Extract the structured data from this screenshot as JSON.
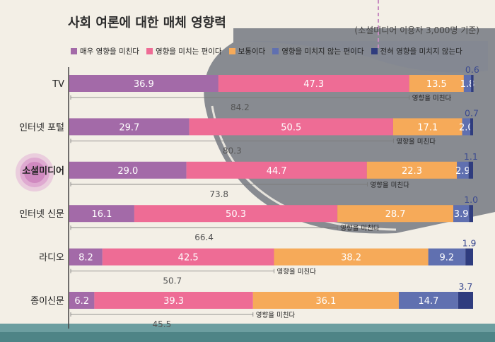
{
  "chart_data": {
    "type": "bar",
    "orientation": "horizontal-stacked-100",
    "title": "사회 여론에 대한 매체 영향력",
    "subtitle": "(소셜미디어 이용자 3,000명 기준)",
    "categories": [
      "TV",
      "인터넷 포털",
      "소셜미디어",
      "인터넷 신문",
      "라디오",
      "종이신문"
    ],
    "highlight_category": "소셜미디어",
    "series": [
      {
        "name": "매우 영향을 미친다",
        "color": "#a36aa8",
        "values": [
          36.9,
          29.7,
          29.0,
          16.1,
          8.2,
          6.2
        ]
      },
      {
        "name": "영향을 미치는 편이다",
        "color": "#ee6c95",
        "values": [
          47.3,
          50.5,
          44.7,
          50.3,
          42.5,
          39.3
        ]
      },
      {
        "name": "보통이다",
        "color": "#f6aa59",
        "values": [
          13.5,
          17.1,
          22.3,
          28.7,
          38.2,
          36.1
        ]
      },
      {
        "name": "영향을 미치지 않는 편이다",
        "color": "#6070b0",
        "values": [
          1.8,
          2.0,
          2.9,
          3.9,
          9.2,
          14.7
        ]
      },
      {
        "name": "전혀 영향을 미치지 않는다",
        "color": "#2f3c7e",
        "values": [
          0.6,
          0.7,
          1.1,
          1.0,
          1.9,
          3.7
        ]
      }
    ],
    "influence_label": "영향을 미친다",
    "influence_totals": [
      84.2,
      80.3,
      73.8,
      66.4,
      50.7,
      45.5
    ]
  }
}
